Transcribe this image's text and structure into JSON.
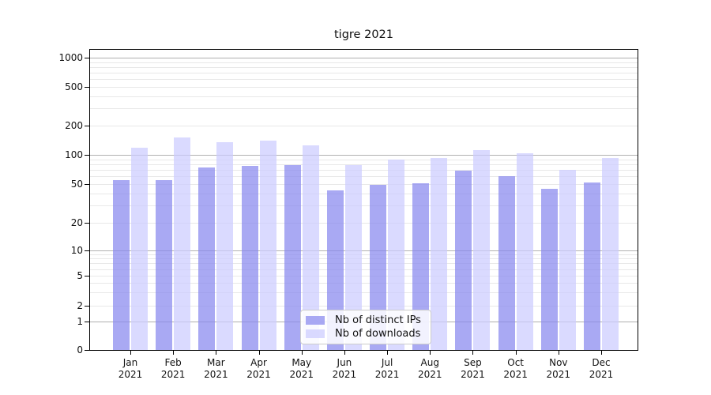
{
  "title": "tigre 2021",
  "chart_data": {
    "type": "bar",
    "title": "tigre 2021",
    "categories": [
      "Jan 2021",
      "Feb 2021",
      "Mar 2021",
      "Apr 2021",
      "May 2021",
      "Jun 2021",
      "Jul 2021",
      "Aug 2021",
      "Sep 2021",
      "Oct 2021",
      "Nov 2021",
      "Dec 2021"
    ],
    "series": [
      {
        "name": "Nb of distinct IPs",
        "color": "rgba(136,136,238,0.72)",
        "values": [
          55,
          55,
          74,
          77,
          79,
          43,
          49,
          51,
          69,
          60,
          45,
          52
        ]
      },
      {
        "name": "Nb of downloads",
        "color": "rgba(204,204,255,0.72)",
        "values": [
          118,
          151,
          136,
          141,
          125,
          78,
          90,
          93,
          112,
          104,
          70,
          92
        ]
      }
    ],
    "yscale": "log",
    "ylim": [
      0,
      1200
    ],
    "yticks": [
      0,
      1,
      2,
      5,
      10,
      20,
      50,
      100,
      200,
      500,
      1000
    ],
    "grid": true,
    "legend_position": "inside lower center"
  },
  "colors": {
    "bar_distinct_ips": "rgba(136,136,238,0.72)",
    "bar_downloads": "rgba(204,204,255,0.72)",
    "grid_major": "#b0b0b0",
    "grid_minor": "#e8e8e8",
    "axis": "#000000",
    "background": "#ffffff"
  }
}
